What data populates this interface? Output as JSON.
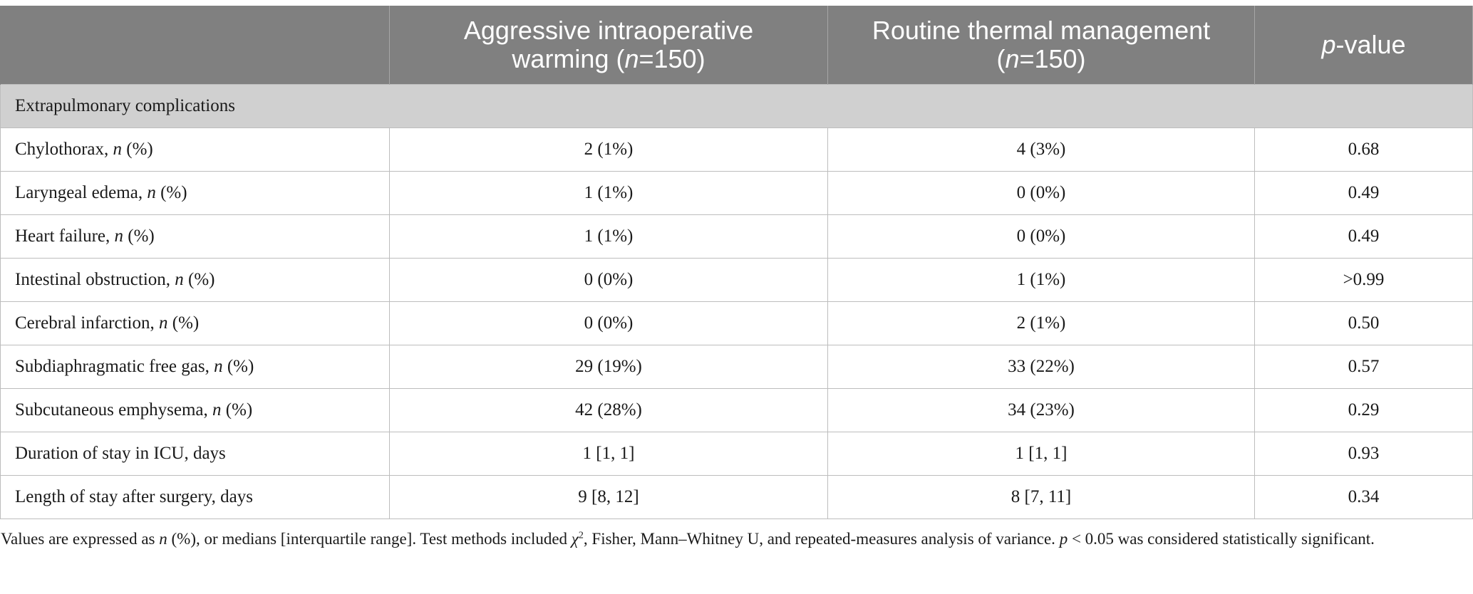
{
  "header": {
    "col1": "",
    "col2_line1": "Aggressive intraoperative",
    "col2_line2a": "warming (",
    "col2_n": "n",
    "col2_line2b": "=150)",
    "col3_line1": "Routine thermal management",
    "col3_line2a": "(",
    "col3_n": "n",
    "col3_line2b": "=150)",
    "col4_p": "p",
    "col4_rest": "-value"
  },
  "section_title": "Extrapulmonary complications",
  "rows": [
    {
      "label": "Chylothorax, ",
      "n": "n",
      "suffix": " (%)",
      "a": "2 (1%)",
      "b": "4 (3%)",
      "p": "0.68"
    },
    {
      "label": "Laryngeal edema, ",
      "n": "n",
      "suffix": " (%)",
      "a": "1 (1%)",
      "b": "0 (0%)",
      "p": "0.49"
    },
    {
      "label": "Heart failure, ",
      "n": "n",
      "suffix": " (%)",
      "a": "1 (1%)",
      "b": "0 (0%)",
      "p": "0.49"
    },
    {
      "label": "Intestinal obstruction, ",
      "n": "n",
      "suffix": " (%)",
      "a": "0 (0%)",
      "b": "1 (1%)",
      "p": ">0.99"
    },
    {
      "label": "Cerebral infarction, ",
      "n": "n",
      "suffix": " (%)",
      "a": "0 (0%)",
      "b": "2 (1%)",
      "p": "0.50"
    },
    {
      "label": "Subdiaphragmatic free gas, ",
      "n": "n",
      "suffix": " (%)",
      "a": "29 (19%)",
      "b": "33 (22%)",
      "p": "0.57"
    },
    {
      "label": "Subcutaneous emphysema, ",
      "n": "n",
      "suffix": " (%)",
      "a": "42 (28%)",
      "b": "34 (23%)",
      "p": "0.29"
    },
    {
      "label": "Duration of stay in ICU, days",
      "n": "",
      "suffix": "",
      "a": "1 [1, 1]",
      "b": "1 [1, 1]",
      "p": "0.93"
    },
    {
      "label": "Length of stay after surgery, days",
      "n": "",
      "suffix": "",
      "a": "9 [8, 12]",
      "b": "8 [7, 11]",
      "p": "0.34"
    }
  ],
  "footnote": {
    "part1": "Values are expressed as ",
    "n": "n",
    "part2": " (%), or medians [interquartile range]. Test methods included ",
    "chi": "χ",
    "sup": "2",
    "part3": ", Fisher, Mann–Whitney U, and repeated-measures analysis of variance. ",
    "p": "p",
    "part4": " < 0.05 was considered statistically significant."
  },
  "colors": {
    "header_bg": "#808080",
    "section_bg": "#d0d0d0",
    "border": "#bdbdbd"
  }
}
